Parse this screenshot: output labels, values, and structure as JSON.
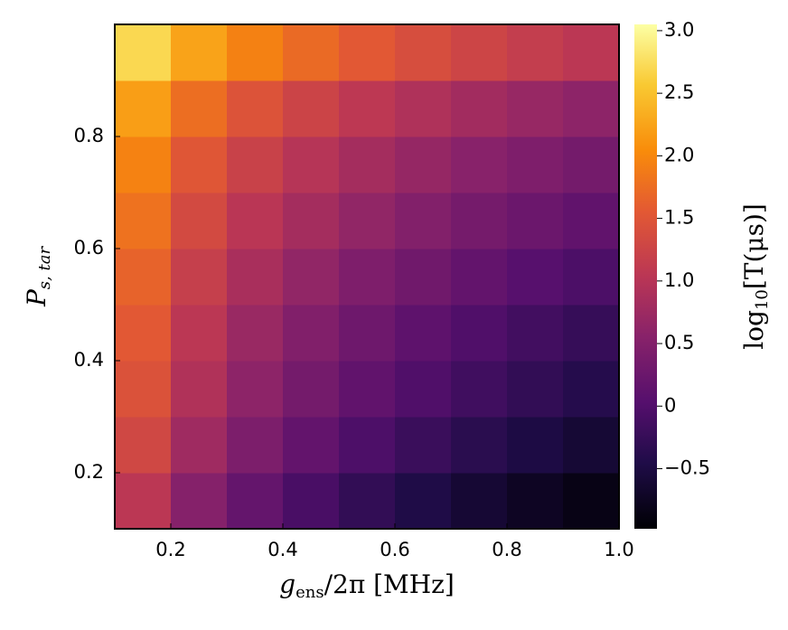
{
  "chart_data": {
    "type": "heatmap",
    "xlabel": {
      "main": "g",
      "sub": "ens",
      "rest": "/2π [MHz]"
    },
    "ylabel": {
      "main": "P",
      "sub": "s, tar"
    },
    "colorbar_label": {
      "main": "log",
      "sub": "10",
      "rest": "[T(μs)]"
    },
    "colormap": "inferno",
    "x": [
      0.15,
      0.25,
      0.35,
      0.45,
      0.55,
      0.65,
      0.75,
      0.85,
      0.95
    ],
    "y": [
      0.15,
      0.25,
      0.35,
      0.45,
      0.55,
      0.65,
      0.75,
      0.85,
      0.95
    ],
    "z": [
      [
        1.05,
        0.52,
        0.18,
        -0.08,
        -0.29,
        -0.46,
        -0.61,
        -0.74,
        -0.85
      ],
      [
        1.3,
        0.77,
        0.43,
        0.17,
        -0.04,
        -0.21,
        -0.36,
        -0.49,
        -0.6
      ],
      [
        1.45,
        0.94,
        0.6,
        0.35,
        0.15,
        -0.02,
        -0.16,
        -0.29,
        -0.4
      ],
      [
        1.55,
        1.05,
        0.72,
        0.48,
        0.28,
        0.12,
        -0.02,
        -0.14,
        -0.25
      ],
      [
        1.65,
        1.18,
        0.87,
        0.64,
        0.45,
        0.3,
        0.17,
        0.05,
        -0.05
      ],
      [
        1.8,
        1.34,
        1.04,
        0.82,
        0.64,
        0.49,
        0.36,
        0.25,
        0.15
      ],
      [
        1.95,
        1.51,
        1.22,
        1.0,
        0.82,
        0.68,
        0.55,
        0.45,
        0.35
      ],
      [
        2.2,
        1.76,
        1.47,
        1.25,
        1.07,
        0.93,
        0.8,
        0.7,
        0.6
      ],
      [
        2.7,
        2.24,
        1.94,
        1.72,
        1.54,
        1.39,
        1.26,
        1.15,
        1.05
      ]
    ],
    "xlim": [
      0.1,
      1.0
    ],
    "ylim": [
      0.1,
      1.0
    ],
    "zlim": [
      -0.98,
      3.05
    ],
    "xticks": [
      0.2,
      0.4,
      0.6,
      0.8,
      {
        "value": 1.0,
        "label": "1.0"
      }
    ],
    "yticks": [
      0.2,
      0.4,
      0.6,
      0.8
    ],
    "zticks": [
      {
        "value": -0.5,
        "label": "−0.5"
      },
      0,
      0.5,
      {
        "value": 1.0,
        "label": "1.0"
      },
      1.5,
      {
        "value": 2.0,
        "label": "2.0"
      },
      2.5,
      {
        "value": 3.0,
        "label": "3.0"
      }
    ]
  }
}
